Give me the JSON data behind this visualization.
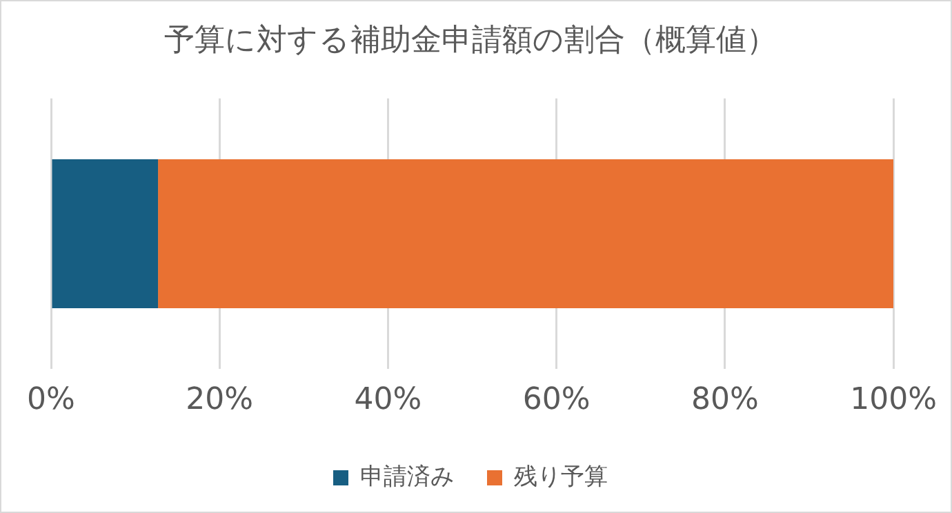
{
  "chart_data": {
    "type": "bar",
    "orientation": "horizontal",
    "stacked": true,
    "title": "予算に対する補助金申請額の割合（概算値）",
    "categories": [
      null
    ],
    "series": [
      {
        "name": "申請済み",
        "color": "#175e82",
        "values": [
          12.7
        ]
      },
      {
        "name": "残り予算",
        "color": "#e97132",
        "values": [
          87.3
        ]
      }
    ],
    "xlim": [
      0,
      100
    ],
    "xticks": [
      {
        "value": 0,
        "label": "0%"
      },
      {
        "value": 20,
        "label": "20%"
      },
      {
        "value": 40,
        "label": "40%"
      },
      {
        "value": 60,
        "label": "60%"
      },
      {
        "value": 80,
        "label": "80%"
      },
      {
        "value": 100,
        "label": "100%"
      }
    ],
    "grid": "x",
    "legend": "bottom"
  }
}
